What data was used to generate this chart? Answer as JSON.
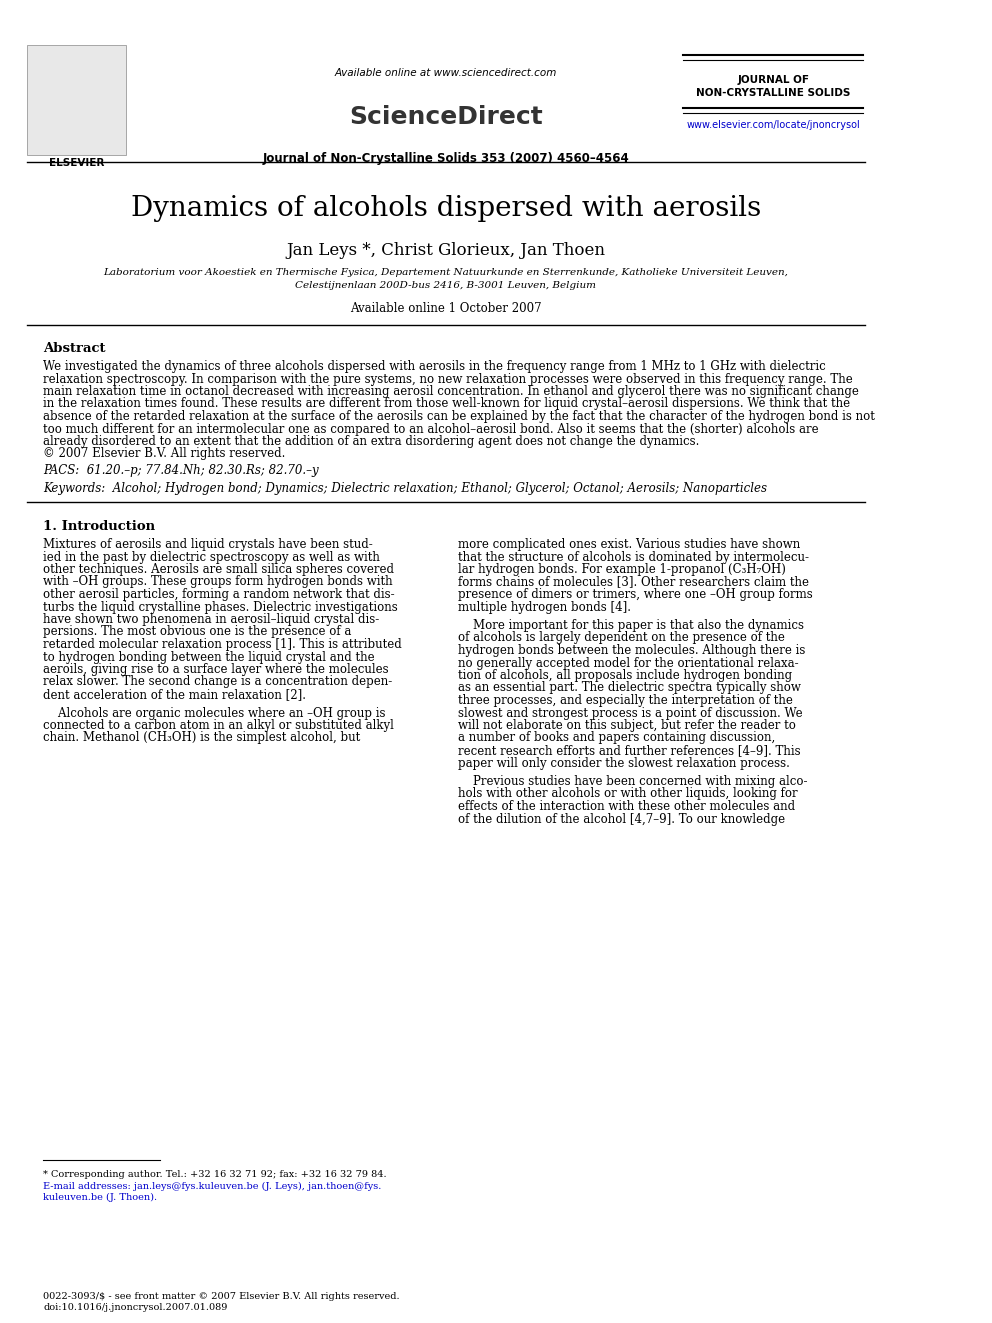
{
  "bg_color": "#ffffff",
  "header": {
    "available_online": "Available online at www.sciencedirect.com",
    "sciencedirect": "ScienceDirect",
    "journal_line": "Journal of Non-Crystalline Solids 353 (2007) 4560–4564",
    "journal_name_line1": "JOURNAL OF",
    "journal_name_line2": "NON-CRYSTALLINE SOLIDS",
    "website": "www.elsevier.com/locate/jnoncrysol"
  },
  "title": "Dynamics of alcohols dispersed with aerosils",
  "authors": "Jan Leys *, Christ Glorieux, Jan Thoen",
  "affiliation_line1": "Laboratorium voor Akoestiek en Thermische Fysica, Departement Natuurkunde en Sterrenkunde, Katholieke Universiteit Leuven,",
  "affiliation_line2": "Celestijnenlaan 200D-bus 2416, B-3001 Leuven, Belgium",
  "available_online_date": "Available online 1 October 2007",
  "abstract_title": "Abstract",
  "abstract_text": "We investigated the dynamics of three alcohols dispersed with aerosils in the frequency range from 1 MHz to 1 GHz with dielectric\nrelaxation spectroscopy. In comparison with the pure systems, no new relaxation processes were observed in this frequency range. The\nmain relaxation time in octanol decreased with increasing aerosil concentration. In ethanol and glycerol there was no significant change\nin the relaxation times found. These results are different from those well-known for liquid crystal–aerosil dispersions. We think that the\nabsence of the retarded relaxation at the surface of the aerosils can be explained by the fact that the character of the hydrogen bond is not\ntoo much different for an intermolecular one as compared to an alcohol–aerosil bond. Also it seems that the (shorter) alcohols are\nalready disordered to an extent that the addition of an extra disordering agent does not change the dynamics.\n© 2007 Elsevier B.V. All rights reserved.",
  "pacs": "PACS:  61.20.–p; 77.84.Nh; 82.30.Rs; 82.70.–y",
  "keywords": "Keywords:  Alcohol; Hydrogen bond; Dynamics; Dielectric relaxation; Ethanol; Glycerol; Octanol; Aerosils; Nanoparticles",
  "section1_title": "1. Introduction",
  "col1_para1": "Mixtures of aerosils and liquid crystals have been stud-\nied in the past by dielectric spectroscopy as well as with\nother techniques. Aerosils are small silica spheres covered\nwith –OH groups. These groups form hydrogen bonds with\nother aerosil particles, forming a random network that dis-\nturbs the liquid crystalline phases. Dielectric investigations\nhave shown two phenomena in aerosil–liquid crystal dis-\npersions. The most obvious one is the presence of a\nretarded molecular relaxation process [1]. This is attributed\nto hydrogen bonding between the liquid crystal and the\naeroils, giving rise to a surface layer where the molecules\nrelax slower. The second change is a concentration depen-\ndent acceleration of the main relaxation [2].",
  "col1_para2": "    Alcohols are organic molecules where an –OH group is\nconnected to a carbon atom in an alkyl or substituted alkyl\nchain. Methanol (CH₃OH) is the simplest alcohol, but",
  "col2_para1": "more complicated ones exist. Various studies have shown\nthat the structure of alcohols is dominated by intermolecu-\nlar hydrogen bonds. For example 1-propanol (C₃H₇OH)\nforms chains of molecules [3]. Other researchers claim the\npresence of dimers or trimers, where one –OH group forms\nmultiple hydrogen bonds [4].",
  "col2_para2": "    More important for this paper is that also the dynamics\nof alcohols is largely dependent on the presence of the\nhydrogen bonds between the molecules. Although there is\nno generally accepted model for the orientational relaxa-\ntion of alcohols, all proposals include hydrogen bonding\nas an essential part. The dielectric spectra typically show\nthree processes, and especially the interpretation of the\nslowest and strongest process is a point of discussion. We\nwill not elaborate on this subject, but refer the reader to\na number of books and papers containing discussion,\nrecent research efforts and further references [4–9]. This\npaper will only consider the slowest relaxation process.",
  "col2_para3": "    Previous studies have been concerned with mixing alco-\nhols with other alcohols or with other liquids, looking for\neffects of the interaction with these other molecules and\nof the dilution of the alcohol [4,7–9]. To our knowledge",
  "footnote_star": "* Corresponding author. Tel.: +32 16 32 71 92; fax: +32 16 32 79 84.",
  "footnote_email": "E-mail addresses: jan.leys@fys.kuleuven.be (J. Leys), jan.thoen@fys.\nkuleuven.be (J. Thoen).",
  "footer_text": "0022-3093/$ - see front matter © 2007 Elsevier B.V. All rights reserved.\ndoi:10.1016/j.jnoncrysol.2007.01.089",
  "link_color": "#0000cc"
}
